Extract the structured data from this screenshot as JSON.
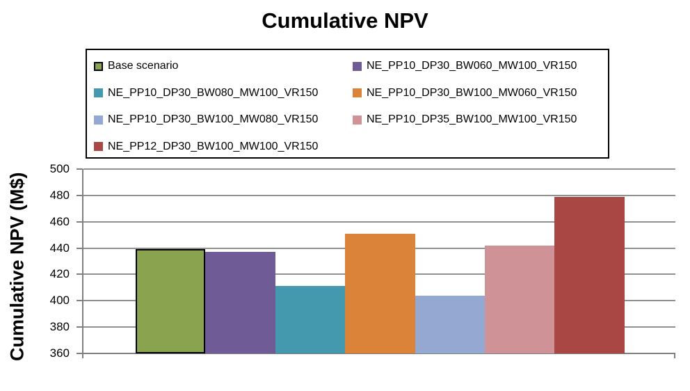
{
  "chart_data": {
    "type": "bar",
    "title": "Cumulative NPV",
    "ylabel": "Cumulative NPV (M$)",
    "xlabel": "",
    "ylim": [
      360,
      500
    ],
    "ytick_step": 20,
    "yticks": [
      360,
      380,
      400,
      420,
      440,
      460,
      480,
      500
    ],
    "grid": true,
    "legend_position": "top",
    "legend_columns": 2,
    "series": [
      {
        "name": "Base scenario",
        "value": 439.5,
        "color": "#8AA34E",
        "border": "#000000"
      },
      {
        "name": "NE_PP10_DP30_BW060_MW100_VR150",
        "value": 437,
        "color": "#6F5B96"
      },
      {
        "name": "NE_PP10_DP30_BW080_MW100_VR150",
        "value": 411.5,
        "color": "#4599AE"
      },
      {
        "name": "NE_PP10_DP30_BW100_MW060_VR150",
        "value": 451,
        "color": "#DB8439"
      },
      {
        "name": "NE_PP10_DP30_BW100_MW080_VR150",
        "value": 404,
        "color": "#94A8D1"
      },
      {
        "name": "NE_PP10_DP35_BW100_MW100_VR150",
        "value": 442,
        "color": "#CF9296"
      },
      {
        "name": "NE_PP12_DP30_BW100_MW100_VR150",
        "value": 479,
        "color": "#A94744"
      }
    ]
  },
  "colors": {
    "gridline": "#909090",
    "axis": "#7F7F7F",
    "text": "#000000",
    "background": "#FFFFFF"
  }
}
